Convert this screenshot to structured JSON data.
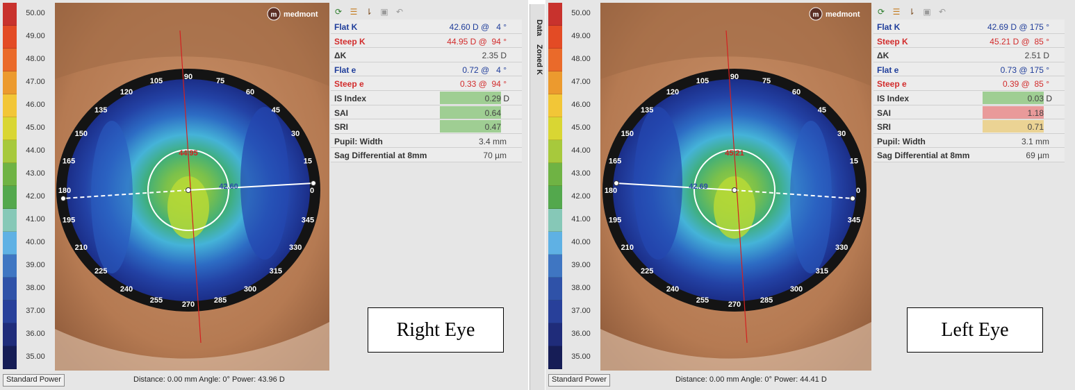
{
  "scale": [
    "50.00",
    "49.00",
    "48.00",
    "47.00",
    "46.00",
    "45.00",
    "44.00",
    "43.00",
    "42.00",
    "41.00",
    "40.00",
    "39.00",
    "38.00",
    "37.00",
    "36.00",
    "35.00"
  ],
  "scale_colors": [
    "#c8322d",
    "#e34b25",
    "#ea6a2a",
    "#ec9a2e",
    "#f2c637",
    "#d9d633",
    "#a7c93c",
    "#6fb344",
    "#53a84d",
    "#86c8b7",
    "#5fb1e4",
    "#3f76c2",
    "#2f52a8",
    "#28409a",
    "#1f2c7a",
    "#161d56"
  ],
  "brand": "medmont",
  "toolbar_icons": [
    "refresh-icon",
    "list-icon",
    "sort-icon",
    "save-icon",
    "undo-icon"
  ],
  "side_tabs": [
    "Data",
    "Zoned K"
  ],
  "axis_angles": [
    "0",
    "15",
    "30",
    "45",
    "60",
    "75",
    "90",
    "105",
    "120",
    "135",
    "150",
    "165",
    "180",
    "195",
    "210",
    "225",
    "240",
    "255",
    "270",
    "285",
    "300",
    "315",
    "330",
    "345"
  ],
  "right": {
    "rows": [
      {
        "label": "Flat K",
        "value": "42.60 D @   4 °",
        "color": "#1f3d9a"
      },
      {
        "label": "Steep K",
        "value": "44.95 D @  94 °",
        "color": "#d22b2b"
      },
      {
        "label": "ΔK",
        "value": "2.35 D",
        "color": "#444444"
      },
      {
        "label": "Flat e",
        "value": "0.72 @   4 °",
        "color": "#1f3d9a"
      },
      {
        "label": "Steep e",
        "value": "0.33 @  94 °",
        "color": "#d22b2b"
      },
      {
        "label": "IS Index",
        "value": "0.29",
        "unit": "D",
        "bg": "#9fce93",
        "color": "#444444"
      },
      {
        "label": "SAI",
        "value": "0.64",
        "bg": "#9fce93",
        "color": "#444444"
      },
      {
        "label": "SRI",
        "value": "0.47",
        "bg": "#9fce93",
        "color": "#444444"
      },
      {
        "label": "Pupil: Width",
        "value": "3.4 mm",
        "color": "#444444"
      },
      {
        "label": "Sag Differential at 8mm",
        "value": "70 µm",
        "color": "#444444"
      }
    ],
    "steep_map_label": "44.95",
    "flat_map_label": "42.60",
    "std_btn": "Standard Power",
    "status": "Distance:  0.00 mm   Angle:  0°   Power:  43.96 D",
    "eye_label": "Right Eye"
  },
  "left": {
    "rows": [
      {
        "label": "Flat K",
        "value": "42.69 D @ 175 °",
        "color": "#1f3d9a"
      },
      {
        "label": "Steep K",
        "value": "45.21 D @  85 °",
        "color": "#d22b2b"
      },
      {
        "label": "ΔK",
        "value": "2.51 D",
        "color": "#444444"
      },
      {
        "label": "Flat e",
        "value": "0.73 @ 175 °",
        "color": "#1f3d9a"
      },
      {
        "label": "Steep e",
        "value": "0.39 @  85 °",
        "color": "#d22b2b"
      },
      {
        "label": "IS Index",
        "value": "0.03",
        "unit": "D",
        "bg": "#9fce93",
        "color": "#444444"
      },
      {
        "label": "SAI",
        "value": "1.18",
        "bg": "#e99a9a",
        "color": "#444444"
      },
      {
        "label": "SRI",
        "value": "0.71",
        "bg": "#ebd394",
        "color": "#444444"
      },
      {
        "label": "Pupil: Width",
        "value": "3.1 mm",
        "color": "#444444"
      },
      {
        "label": "Sag Differential at 8mm",
        "value": "69 µm",
        "color": "#444444"
      }
    ],
    "steep_map_label": "45.21",
    "flat_map_label": "42.69",
    "std_btn": "Standard Power",
    "status": "Distance:  0.00 mm   Angle:  0°   Power:  44.41 D",
    "eye_label": "Left Eye"
  }
}
